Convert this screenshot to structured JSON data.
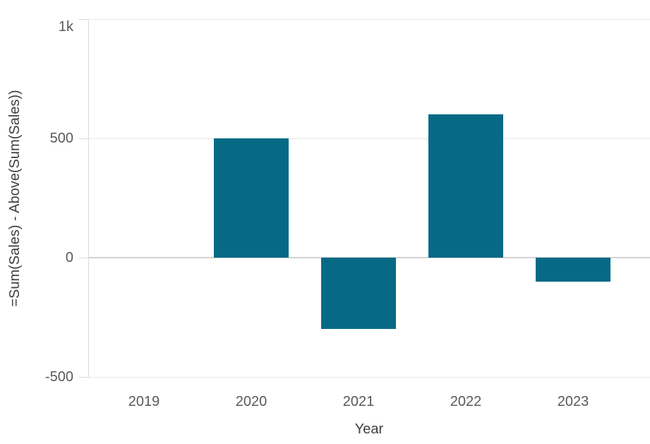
{
  "chart_data": {
    "type": "bar",
    "title": "",
    "categories": [
      "2019",
      "2020",
      "2021",
      "2022",
      "2023"
    ],
    "values": [
      0,
      500,
      -300,
      600,
      -100
    ],
    "xlabel": "Year",
    "ylabel": "=Sum(Sales) - Above(Sum(Sales))",
    "ylim": [
      -500,
      1000
    ],
    "yticks": [
      {
        "value": 1000,
        "label": "1k"
      },
      {
        "value": 500,
        "label": "500"
      },
      {
        "value": 0,
        "label": "0"
      },
      {
        "value": -500,
        "label": "-500"
      }
    ],
    "grid": "horizontal",
    "legend": "none",
    "colors": {
      "bar": "#066a86",
      "gridline": "#e6e6e6",
      "zero_line": "#d4d4d4",
      "axis_line": "#d9d9d9",
      "tick_label": "#595959",
      "axis_title": "#404040",
      "background": "#ffffff"
    }
  }
}
